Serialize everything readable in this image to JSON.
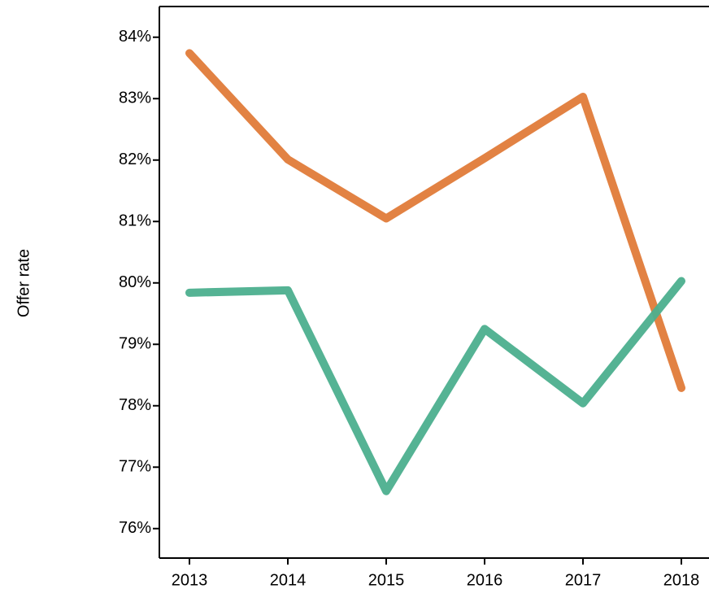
{
  "chart_data": {
    "type": "line",
    "y_label": "Offer rate",
    "categories": [
      "2013",
      "2014",
      "2015",
      "2016",
      "2017",
      "2018"
    ],
    "series": [
      {
        "color": "#e07b39",
        "values": [
          83.74,
          82.01,
          81.05,
          82.03,
          83.03,
          78.29
        ]
      },
      {
        "color": "#4caf8e",
        "values": [
          79.84,
          79.88,
          76.61,
          79.25,
          78.04,
          80.03
        ]
      }
    ],
    "ylim": [
      75.52,
      84.5
    ],
    "yticks": [
      {
        "value": 76,
        "label": "76%"
      },
      {
        "value": 77,
        "label": "77%"
      },
      {
        "value": 78,
        "label": "78%"
      },
      {
        "value": 79,
        "label": "79%"
      },
      {
        "value": 80,
        "label": "80%"
      },
      {
        "value": 81,
        "label": "81%"
      },
      {
        "value": 82,
        "label": "82%"
      },
      {
        "value": 83,
        "label": "83%"
      },
      {
        "value": 84,
        "label": "84%"
      }
    ]
  }
}
